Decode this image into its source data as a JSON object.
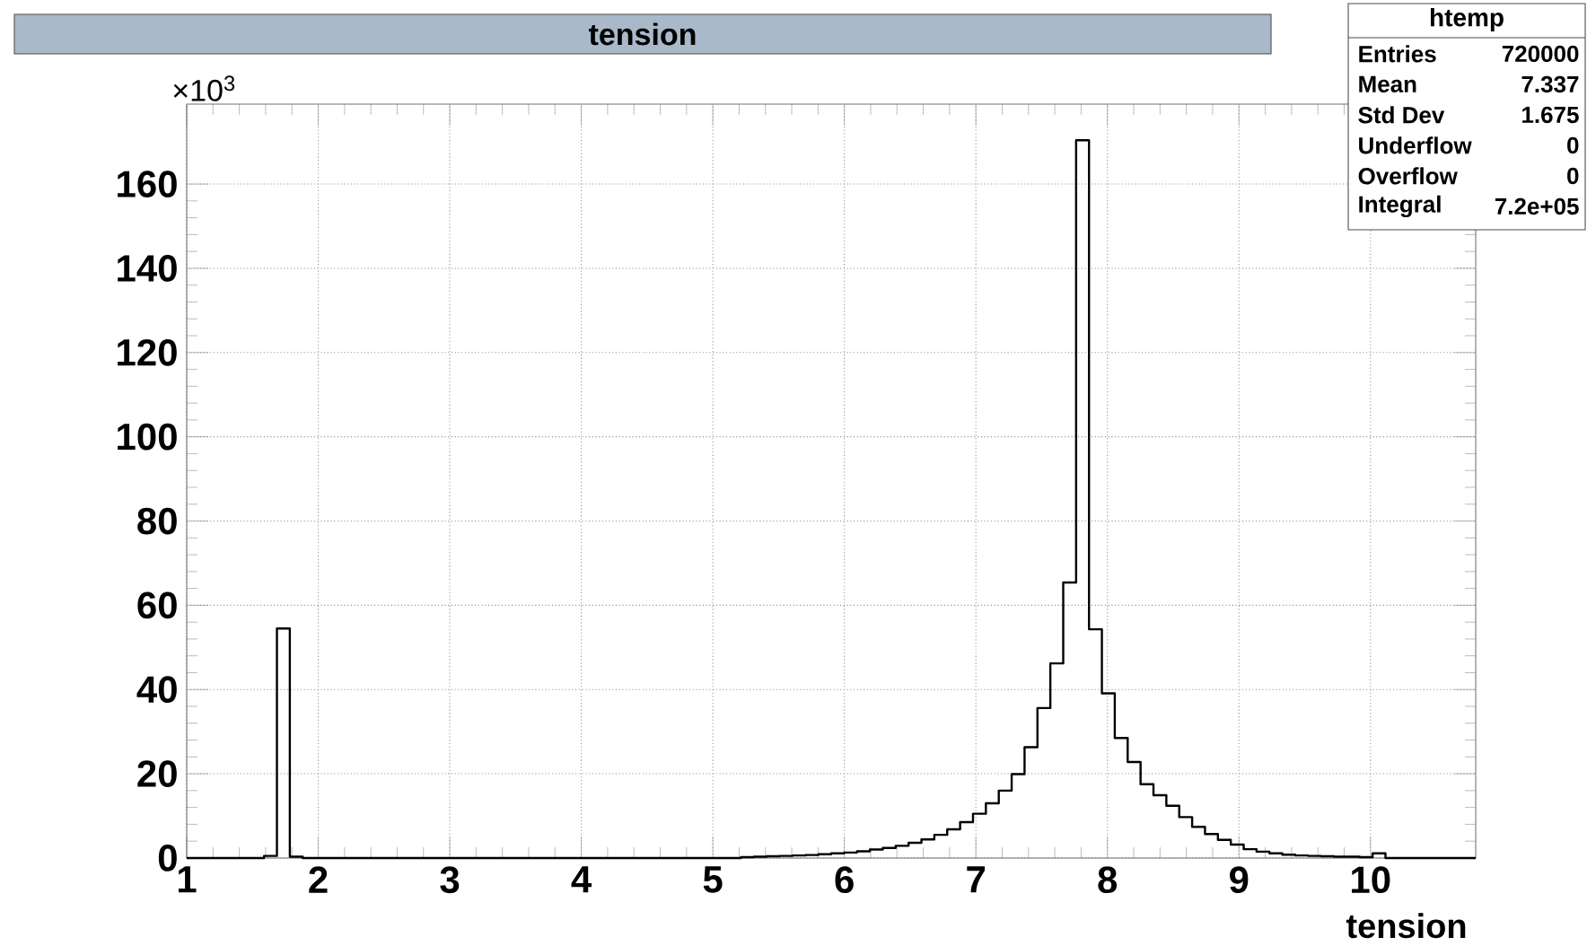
{
  "chart_data": {
    "type": "histogram",
    "title": "tension",
    "xlabel": "tension",
    "color": "#000000",
    "bins": [
      1.0,
      1.098,
      1.196,
      1.294,
      1.392,
      1.49,
      1.588,
      1.686,
      1.784,
      1.882,
      1.98,
      2.078,
      2.176,
      2.274,
      2.372,
      2.47,
      2.568,
      2.666,
      2.764,
      2.862,
      2.96,
      3.058,
      3.156,
      3.254,
      3.352,
      3.45,
      3.548,
      3.646,
      3.744,
      3.842,
      3.94,
      4.038,
      4.136,
      4.234,
      4.332,
      4.43,
      4.528,
      4.626,
      4.724,
      4.822,
      4.92,
      5.018,
      5.116,
      5.214,
      5.312,
      5.41,
      5.508,
      5.606,
      5.704,
      5.802,
      5.9,
      5.998,
      6.096,
      6.194,
      6.292,
      6.39,
      6.488,
      6.586,
      6.684,
      6.782,
      6.88,
      6.978,
      7.076,
      7.174,
      7.272,
      7.37,
      7.468,
      7.566,
      7.664,
      7.762,
      7.86,
      7.958,
      8.056,
      8.154,
      8.252,
      8.35,
      8.448,
      8.546,
      8.644,
      8.742,
      8.84,
      8.938,
      9.036,
      9.134,
      9.232,
      9.33,
      9.428,
      9.526,
      9.624,
      9.722,
      9.82,
      9.918,
      10.016,
      10.114,
      10.212,
      10.31,
      10.408,
      10.506,
      10.604,
      10.702,
      10.8
    ],
    "values": [
      0,
      0,
      0,
      0,
      0,
      0,
      0.5,
      54.5,
      0.3,
      0,
      0,
      0,
      0,
      0,
      0,
      0,
      0,
      0,
      0,
      0,
      0,
      0,
      0,
      0,
      0,
      0,
      0,
      0,
      0,
      0,
      0,
      0,
      0,
      0,
      0,
      0,
      0,
      0,
      0,
      0,
      0,
      0,
      0,
      0.2,
      0.3,
      0.4,
      0.5,
      0.6,
      0.7,
      0.9,
      1.1,
      1.3,
      1.6,
      2.0,
      2.4,
      2.9,
      3.6,
      4.4,
      5.5,
      6.8,
      8.5,
      10.5,
      13,
      16,
      19.9,
      26.3,
      35.6,
      46.2,
      65.4,
      170.4,
      54.3,
      39.1,
      28.5,
      22.8,
      17.5,
      14.9,
      12.4,
      9.7,
      7.4,
      5.7,
      4.3,
      3.2,
      2.1,
      1.5,
      1.1,
      0.8,
      0.6,
      0.5,
      0.4,
      0.3,
      0.3,
      0.2,
      1.1,
      0,
      0,
      0,
      0,
      0,
      0,
      0
    ],
    "xlim": [
      1,
      10.8
    ],
    "ylim": [
      0,
      179
    ],
    "xticks": [
      1,
      2,
      3,
      4,
      5,
      6,
      7,
      8,
      9,
      10
    ],
    "yticks": [
      0,
      20,
      40,
      60,
      80,
      100,
      120,
      140,
      160
    ],
    "grid": true,
    "annotations": [
      "×10$^{3}$",
      "htemp",
      "Entries",
      "720000",
      "Mean",
      "7.337",
      "Std Dev",
      "1.675",
      "Underflow",
      "0",
      "Overflow",
      "0",
      "Integral",
      "7.2e+05"
    ]
  }
}
